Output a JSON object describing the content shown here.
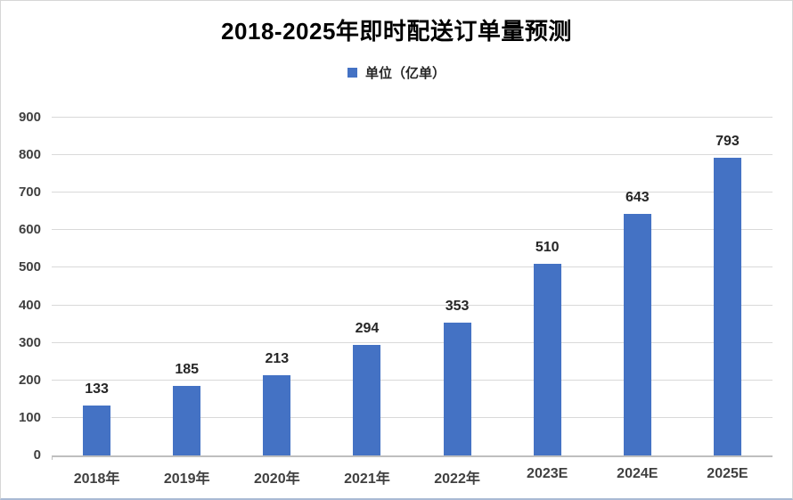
{
  "title": "2018-2025年即时配送订单量预测",
  "legend": {
    "label": "单位（亿单）",
    "swatch_color": "#4472C4"
  },
  "chart_data": {
    "type": "bar",
    "title": "2018-2025年即时配送订单量预测",
    "series_name": "单位（亿单）",
    "categories": [
      "2018年",
      "2019年",
      "2020年",
      "2021年",
      "2022年",
      "2023E",
      "2024E",
      "2025E"
    ],
    "values": [
      133,
      185,
      213,
      294,
      353,
      510,
      643,
      793
    ],
    "xlabel": "",
    "ylabel": "",
    "ylim": [
      0,
      900
    ],
    "yticks": [
      0,
      100,
      200,
      300,
      400,
      500,
      600,
      700,
      800,
      900
    ],
    "grid": true,
    "legend_position": "top-center",
    "bar_color": "#4472C4",
    "gridline_color": "#d9d9d9",
    "axis_color": "#bfbfbf",
    "label_color": "#404040",
    "data_label_color": "#262626"
  }
}
